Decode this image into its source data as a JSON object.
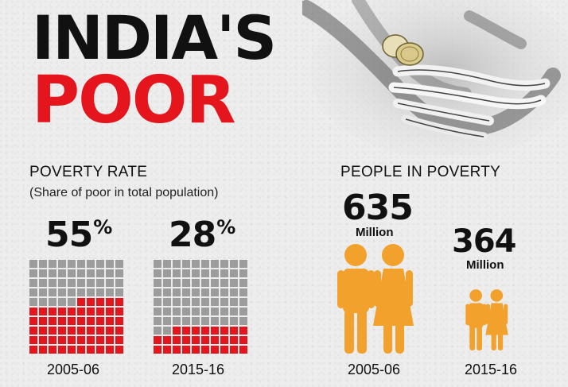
{
  "header": {
    "line1": "INDIA'S",
    "line2": "POOR"
  },
  "poverty_rate": {
    "title": "POVERTY RATE",
    "subtitle": "(Share of poor in total population)",
    "periods": [
      {
        "year": "2005-06",
        "value": "55",
        "pct_symbol": "%",
        "share_percent": 55
      },
      {
        "year": "2015-16",
        "value": "28",
        "pct_symbol": "%",
        "share_percent": 28
      }
    ]
  },
  "people_in_poverty": {
    "title": "PEOPLE IN POVERTY",
    "periods": [
      {
        "year": "2005-06",
        "value": "635",
        "unit": "Million",
        "count_millions": 635
      },
      {
        "year": "2015-16",
        "value": "364",
        "unit": "Million",
        "count_millions": 364
      }
    ]
  },
  "colors": {
    "accent_red": "#e4151c",
    "grid_grey": "#9c9c9c",
    "figure_orange": "#f2a12c",
    "text_dark": "#111111"
  },
  "icons": [
    "hands-with-coins-icon",
    "couple-icon"
  ]
}
